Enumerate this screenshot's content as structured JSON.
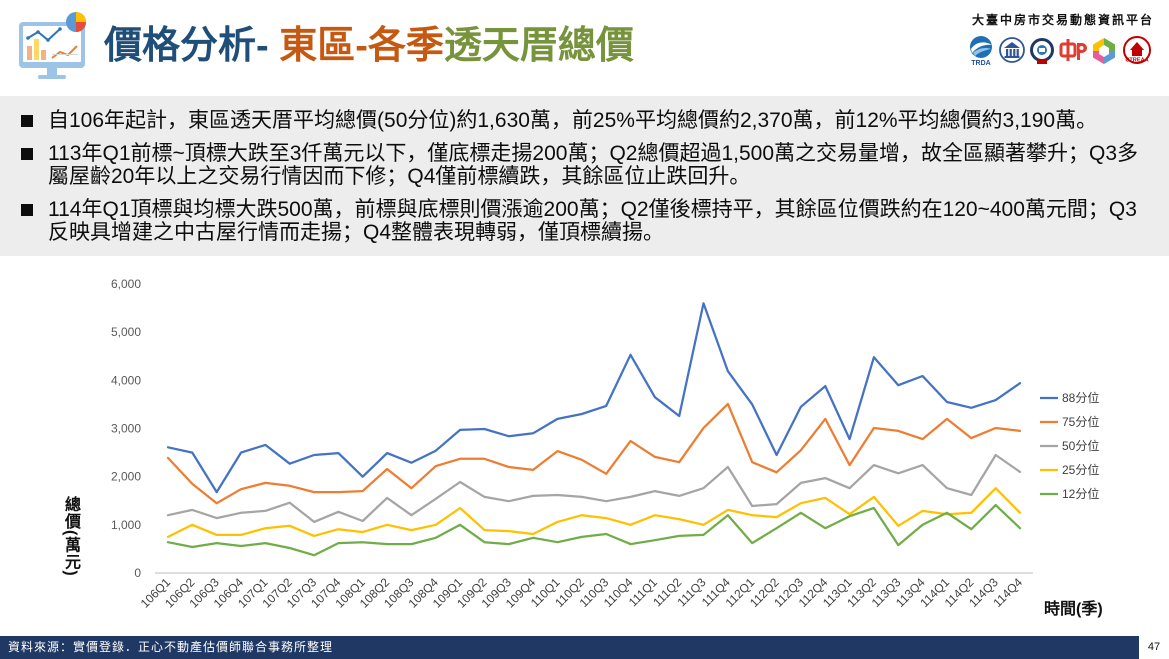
{
  "header": {
    "title_topic": "價格分析- ",
    "title_district": "東區-各季",
    "title_subject": "透天厝總價",
    "platform_name": "大臺中房市交易動態資訊平台",
    "logos": [
      {
        "icon": "trda-logo",
        "text": "TRDA"
      },
      {
        "icon": "building-association-logo"
      },
      {
        "icon": "government-seal-logo"
      },
      {
        "icon": "red-zhong-logo"
      },
      {
        "icon": "hexagon-logo"
      },
      {
        "icon": "ctreaa-logo",
        "text": "CTREAA"
      }
    ],
    "header_icon": "analytics-monitor-icon"
  },
  "theme": {
    "title_topic": "#1F4E79",
    "title_district": "#C65911",
    "title_subject": "#77933C",
    "footer_bar": "#1F3864",
    "summary_background": "#EDEDED"
  },
  "bullets": [
    "自106年起計，東區透天厝平均總價(50分位)約1,630萬，前25%平均總價約2,370萬，前12%平均總價約3,190萬。",
    "113年Q1前標~頂標大跌至3仟萬元以下，僅底標走揚200萬；Q2總價超過1,500萬之交易量增，故全區顯著攀升；Q3多屬屋齡20年以上之交易行情因而下修；Q4僅前標續跌，其餘區位止跌回升。",
    "114年Q1頂標與均標大跌500萬，前標與底標則價漲逾200萬；Q2僅後標持平，其餘區位價跌約在120~400萬元間；Q3反映具增建之中古屋行情而走揚；Q4整體表現轉弱，僅頂標續揚。"
  ],
  "chart_data": {
    "type": "line",
    "xlabel": "時間(季)",
    "ylabel": "總價(萬元)",
    "ylim": [
      0,
      6000
    ],
    "y_ticks": [
      0,
      1000,
      2000,
      3000,
      4000,
      5000,
      6000
    ],
    "y_tick_labels": [
      "0",
      "1,000",
      "2,000",
      "3,000",
      "4,000",
      "5,000",
      "6,000"
    ],
    "grid": false,
    "legend": "right",
    "categories": [
      "106Q1",
      "106Q2",
      "106Q3",
      "106Q4",
      "107Q1",
      "107Q2",
      "107Q3",
      "107Q4",
      "108Q1",
      "108Q2",
      "108Q3",
      "108Q4",
      "109Q1",
      "109Q2",
      "109Q3",
      "109Q4",
      "110Q1",
      "110Q2",
      "110Q3",
      "110Q4",
      "111Q1",
      "111Q2",
      "111Q3",
      "111Q4",
      "112Q1",
      "112Q2",
      "112Q3",
      "112Q4",
      "113Q1",
      "113Q2",
      "113Q3",
      "113Q4",
      "114Q1",
      "114Q2",
      "114Q3",
      "114Q4"
    ],
    "series": [
      {
        "name": "88分位",
        "color": "#4472C4",
        "values": [
          2610,
          2500,
          1680,
          2500,
          2660,
          2270,
          2450,
          2490,
          2000,
          2490,
          2290,
          2540,
          2970,
          2990,
          2840,
          2900,
          3200,
          3300,
          3470,
          4530,
          3650,
          3260,
          5600,
          4190,
          3500,
          2450,
          3450,
          3880,
          2780,
          4480,
          3900,
          4090,
          3550,
          3430,
          3590,
          3940
        ]
      },
      {
        "name": "75分位",
        "color": "#ED7D31",
        "values": [
          2390,
          1850,
          1450,
          1740,
          1870,
          1810,
          1680,
          1680,
          1700,
          2160,
          1760,
          2220,
          2370,
          2370,
          2200,
          2140,
          2530,
          2350,
          2060,
          2740,
          2410,
          2300,
          3010,
          3510,
          2300,
          2090,
          2550,
          3200,
          2240,
          3010,
          2950,
          2780,
          3200,
          2800,
          3010,
          2950
        ]
      },
      {
        "name": "50分位",
        "color": "#A5A5A5",
        "values": [
          1200,
          1310,
          1140,
          1250,
          1290,
          1460,
          1060,
          1270,
          1080,
          1560,
          1200,
          1540,
          1890,
          1580,
          1490,
          1600,
          1620,
          1580,
          1490,
          1580,
          1700,
          1600,
          1760,
          2200,
          1390,
          1430,
          1870,
          1970,
          1760,
          2240,
          2070,
          2240,
          1760,
          1620,
          2450,
          2100
        ]
      },
      {
        "name": "25分位",
        "color": "#FFC000",
        "values": [
          750,
          1000,
          790,
          790,
          930,
          980,
          770,
          910,
          850,
          1000,
          890,
          1000,
          1350,
          890,
          870,
          810,
          1060,
          1200,
          1140,
          1000,
          1200,
          1120,
          1000,
          1310,
          1200,
          1160,
          1450,
          1560,
          1220,
          1580,
          980,
          1290,
          1220,
          1250,
          1760,
          1250
        ]
      },
      {
        "name": "12分位",
        "color": "#70AD47",
        "values": [
          640,
          540,
          620,
          560,
          620,
          520,
          370,
          620,
          640,
          600,
          600,
          730,
          1000,
          640,
          600,
          730,
          640,
          750,
          810,
          600,
          680,
          770,
          790,
          1200,
          620,
          930,
          1250,
          930,
          1180,
          1350,
          580,
          1000,
          1250,
          910,
          1410,
          930
        ]
      }
    ]
  },
  "footer": {
    "source": "資料來源：實價登錄．正心不動產估價師聯合事務所整理",
    "page_number": "47"
  }
}
